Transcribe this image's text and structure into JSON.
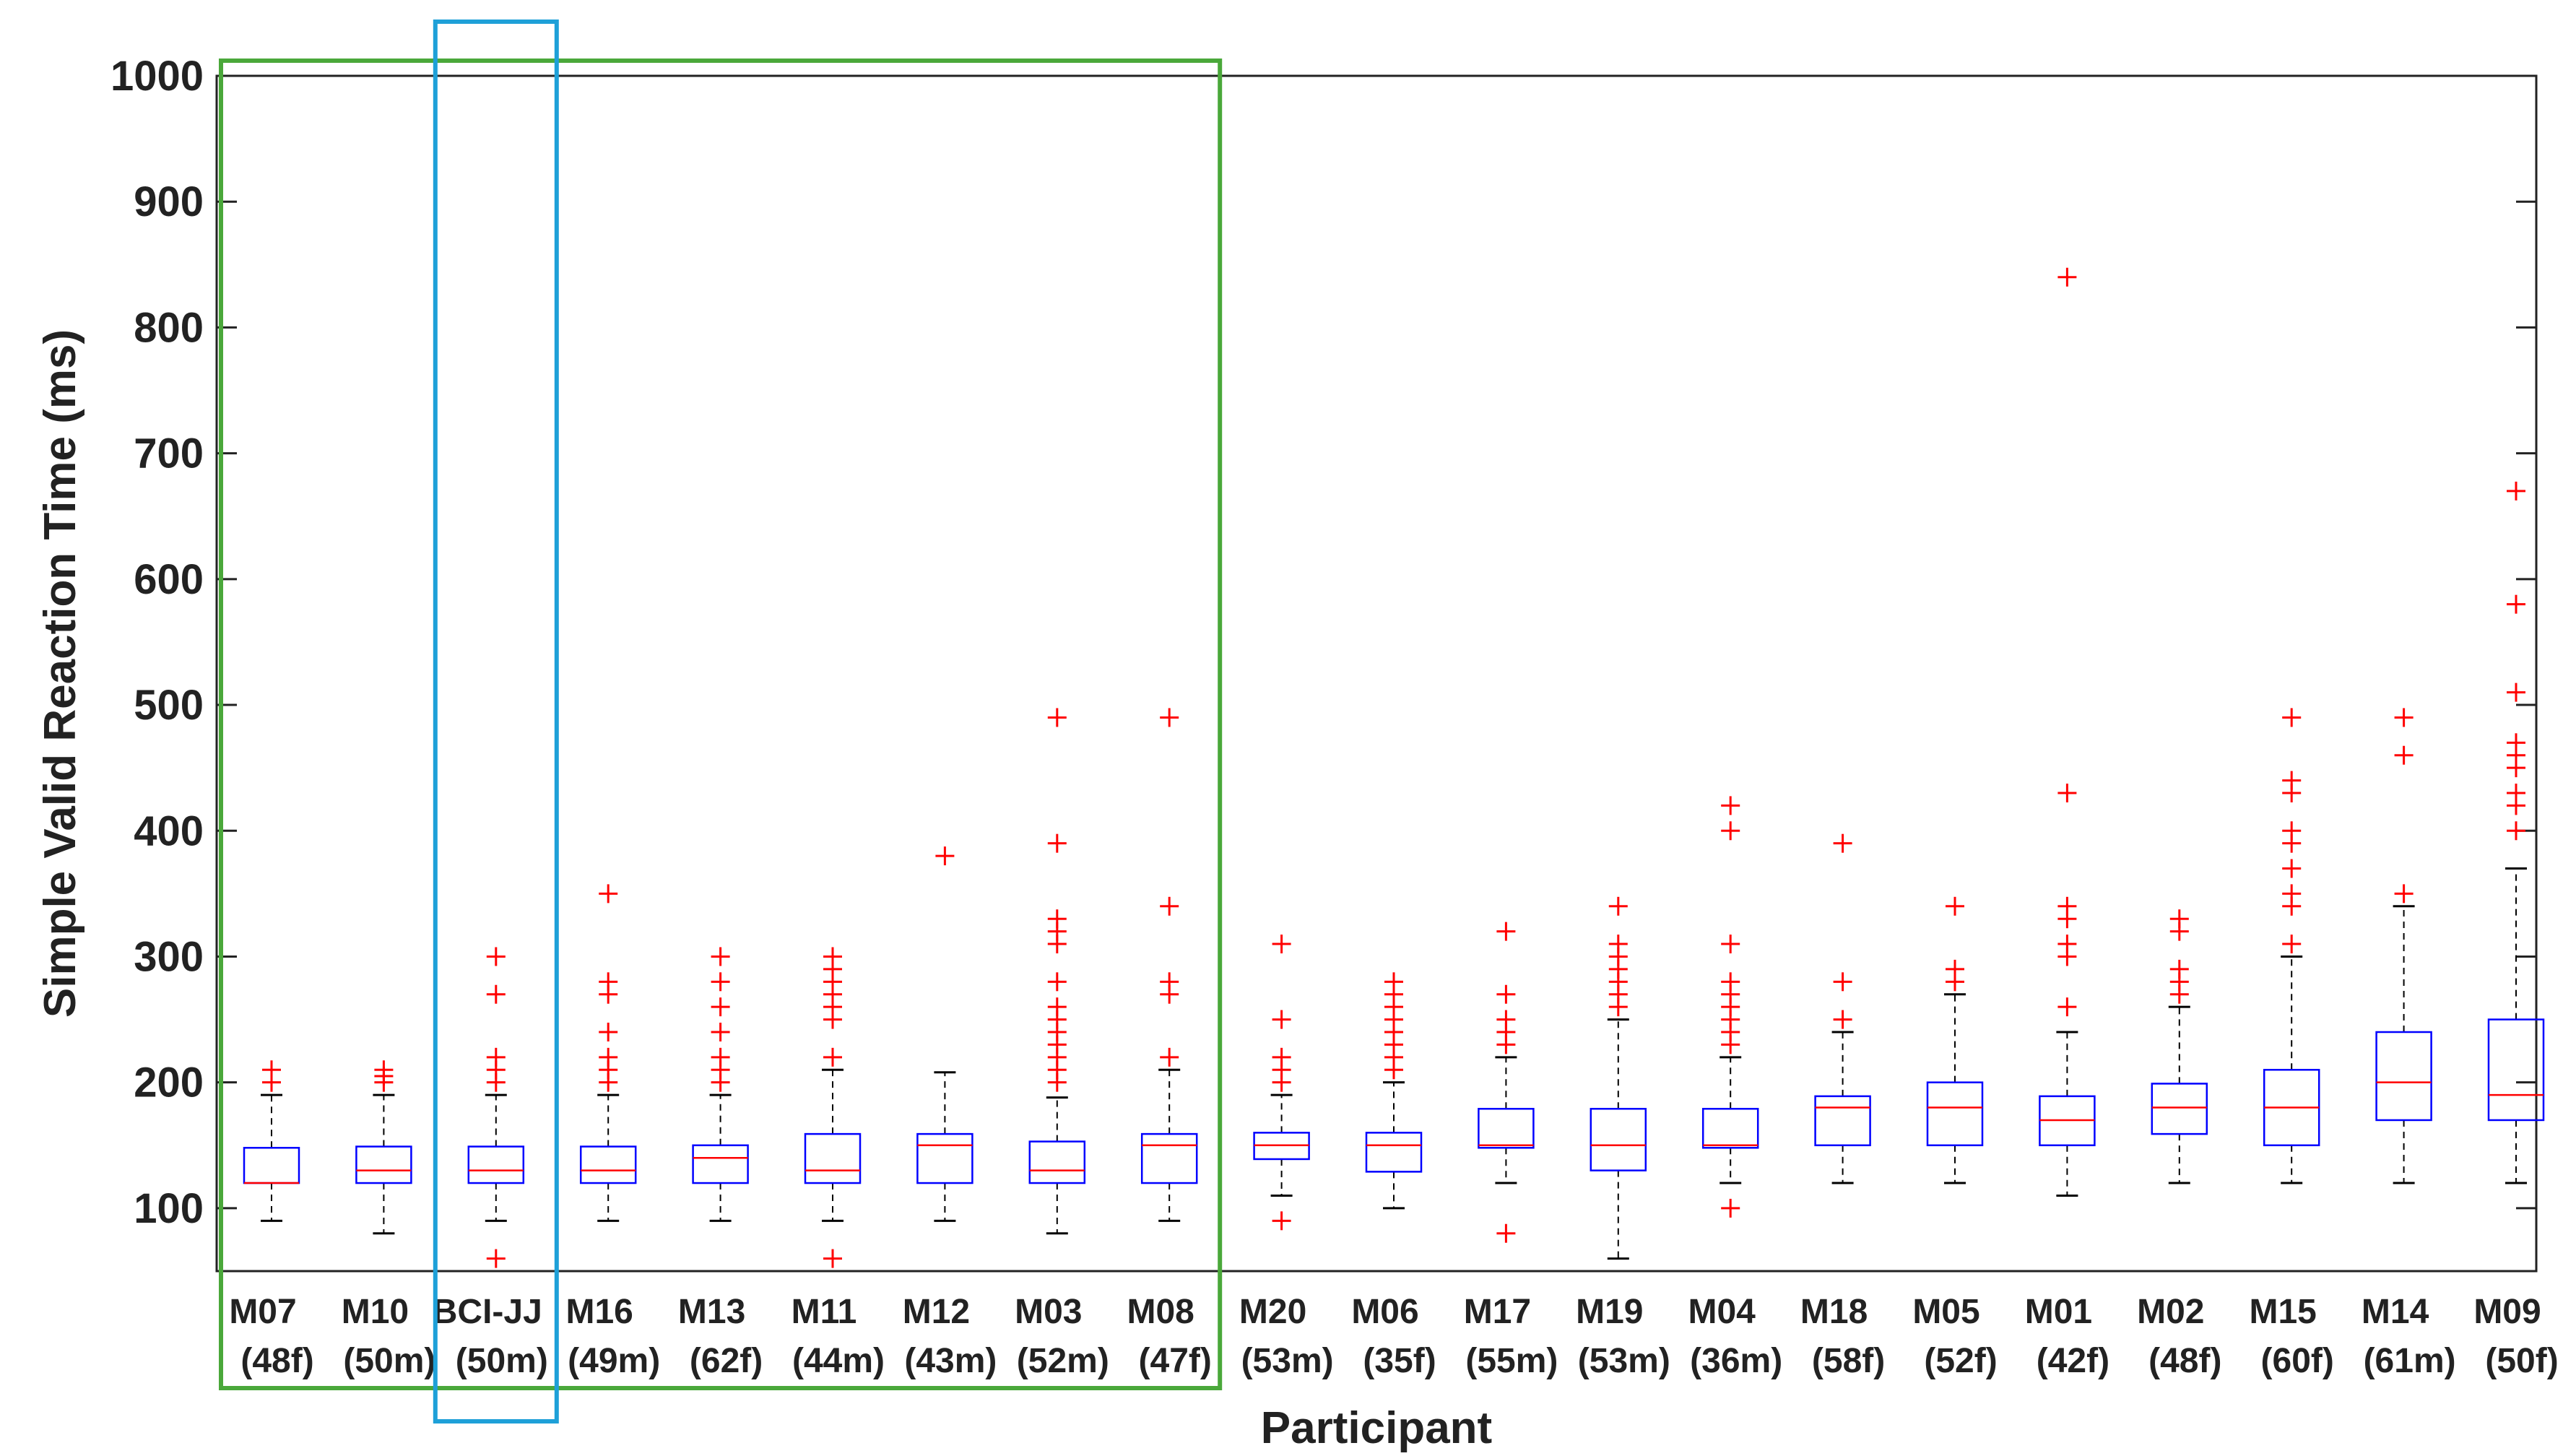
{
  "chart_data": {
    "type": "boxplot",
    "title": "",
    "xlabel": "Participant",
    "ylabel": "Simple Valid Reaction Time (ms)",
    "ylim": [
      50,
      1000
    ],
    "yticks": [
      100,
      200,
      300,
      400,
      500,
      600,
      700,
      800,
      900,
      1000
    ],
    "grid": false,
    "colors": {
      "box": "#0000ff",
      "median": "#ff0000",
      "outlier": "#ff0000",
      "whisker": "#000000",
      "green_group": "#4aa83a",
      "blue_highlight": "#1ea0d8"
    },
    "highlights": [
      {
        "name": "green-group",
        "from_index": 0,
        "to_index": 8
      },
      {
        "name": "blue-highlight",
        "from_index": 2,
        "to_index": 2
      }
    ],
    "participants": [
      {
        "id": "M07",
        "info": "(48f)",
        "q1": 120,
        "median": 120,
        "q3": 148,
        "whisker_low": 90,
        "whisker_high": 190,
        "outliers": [
          200,
          210
        ]
      },
      {
        "id": "M10",
        "info": "(50m)",
        "q1": 120,
        "median": 130,
        "q3": 149,
        "whisker_low": 80,
        "whisker_high": 190,
        "outliers": [
          200,
          205,
          210
        ]
      },
      {
        "id": "BCI-JJ",
        "info": "(50m)",
        "q1": 120,
        "median": 130,
        "q3": 149,
        "whisker_low": 90,
        "whisker_high": 190,
        "outliers": [
          60,
          200,
          210,
          220,
          270,
          300
        ]
      },
      {
        "id": "M16",
        "info": "(49m)",
        "q1": 120,
        "median": 130,
        "q3": 149,
        "whisker_low": 90,
        "whisker_high": 190,
        "outliers": [
          200,
          210,
          220,
          240,
          270,
          280,
          350
        ]
      },
      {
        "id": "M13",
        "info": "(62f)",
        "q1": 120,
        "median": 140,
        "q3": 150,
        "whisker_low": 90,
        "whisker_high": 190,
        "outliers": [
          200,
          210,
          220,
          240,
          260,
          280,
          300
        ]
      },
      {
        "id": "M11",
        "info": "(44m)",
        "q1": 120,
        "median": 130,
        "q3": 159,
        "whisker_low": 90,
        "whisker_high": 210,
        "outliers": [
          60,
          220,
          250,
          260,
          270,
          280,
          290,
          300
        ]
      },
      {
        "id": "M12",
        "info": "(43m)",
        "q1": 120,
        "median": 150,
        "q3": 159,
        "whisker_low": 90,
        "whisker_high": 208,
        "outliers": [
          380
        ]
      },
      {
        "id": "M03",
        "info": "(52m)",
        "q1": 120,
        "median": 130,
        "q3": 153,
        "whisker_low": 80,
        "whisker_high": 188,
        "outliers": [
          200,
          210,
          220,
          230,
          240,
          250,
          260,
          280,
          310,
          320,
          330,
          390,
          490
        ]
      },
      {
        "id": "M08",
        "info": "(47f)",
        "q1": 120,
        "median": 150,
        "q3": 159,
        "whisker_low": 90,
        "whisker_high": 210,
        "outliers": [
          220,
          270,
          280,
          340,
          490
        ]
      },
      {
        "id": "M20",
        "info": "(53m)",
        "q1": 139,
        "median": 150,
        "q3": 160,
        "whisker_low": 110,
        "whisker_high": 190,
        "outliers": [
          90,
          200,
          210,
          220,
          250,
          310
        ]
      },
      {
        "id": "M06",
        "info": "(35f)",
        "q1": 129,
        "median": 150,
        "q3": 160,
        "whisker_low": 100,
        "whisker_high": 200,
        "outliers": [
          210,
          220,
          230,
          240,
          250,
          260,
          270,
          280
        ]
      },
      {
        "id": "M17",
        "info": "(55m)",
        "q1": 148,
        "median": 150,
        "q3": 179,
        "whisker_low": 120,
        "whisker_high": 220,
        "outliers": [
          80,
          230,
          240,
          250,
          270,
          320
        ]
      },
      {
        "id": "M19",
        "info": "(53m)",
        "q1": 130,
        "median": 150,
        "q3": 179,
        "whisker_low": 60,
        "whisker_high": 250,
        "outliers": [
          260,
          270,
          280,
          290,
          300,
          310,
          340
        ]
      },
      {
        "id": "M04",
        "info": "(36m)",
        "q1": 148,
        "median": 150,
        "q3": 179,
        "whisker_low": 120,
        "whisker_high": 220,
        "outliers": [
          100,
          230,
          240,
          250,
          260,
          270,
          280,
          310,
          400,
          420
        ]
      },
      {
        "id": "M18",
        "info": "(58f)",
        "q1": 150,
        "median": 180,
        "q3": 189,
        "whisker_low": 120,
        "whisker_high": 240,
        "outliers": [
          250,
          280,
          390
        ]
      },
      {
        "id": "M05",
        "info": "(52f)",
        "q1": 150,
        "median": 180,
        "q3": 200,
        "whisker_low": 120,
        "whisker_high": 270,
        "outliers": [
          280,
          290,
          340
        ]
      },
      {
        "id": "M01",
        "info": "(42f)",
        "q1": 150,
        "median": 170,
        "q3": 189,
        "whisker_low": 110,
        "whisker_high": 240,
        "outliers": [
          260,
          300,
          310,
          330,
          340,
          430,
          840
        ]
      },
      {
        "id": "M02",
        "info": "(48f)",
        "q1": 159,
        "median": 180,
        "q3": 199,
        "whisker_low": 120,
        "whisker_high": 260,
        "outliers": [
          270,
          280,
          290,
          320,
          330
        ]
      },
      {
        "id": "M15",
        "info": "(60f)",
        "q1": 150,
        "median": 180,
        "q3": 210,
        "whisker_low": 120,
        "whisker_high": 300,
        "outliers": [
          310,
          340,
          350,
          370,
          390,
          400,
          430,
          440,
          490
        ]
      },
      {
        "id": "M14",
        "info": "(61m)",
        "q1": 170,
        "median": 200,
        "q3": 240,
        "whisker_low": 120,
        "whisker_high": 340,
        "outliers": [
          350,
          460,
          490
        ]
      },
      {
        "id": "M09",
        "info": "(50f)",
        "q1": 170,
        "median": 190,
        "q3": 250,
        "whisker_low": 120,
        "whisker_high": 370,
        "outliers": [
          400,
          420,
          430,
          450,
          460,
          470,
          510,
          580,
          670
        ]
      }
    ]
  }
}
